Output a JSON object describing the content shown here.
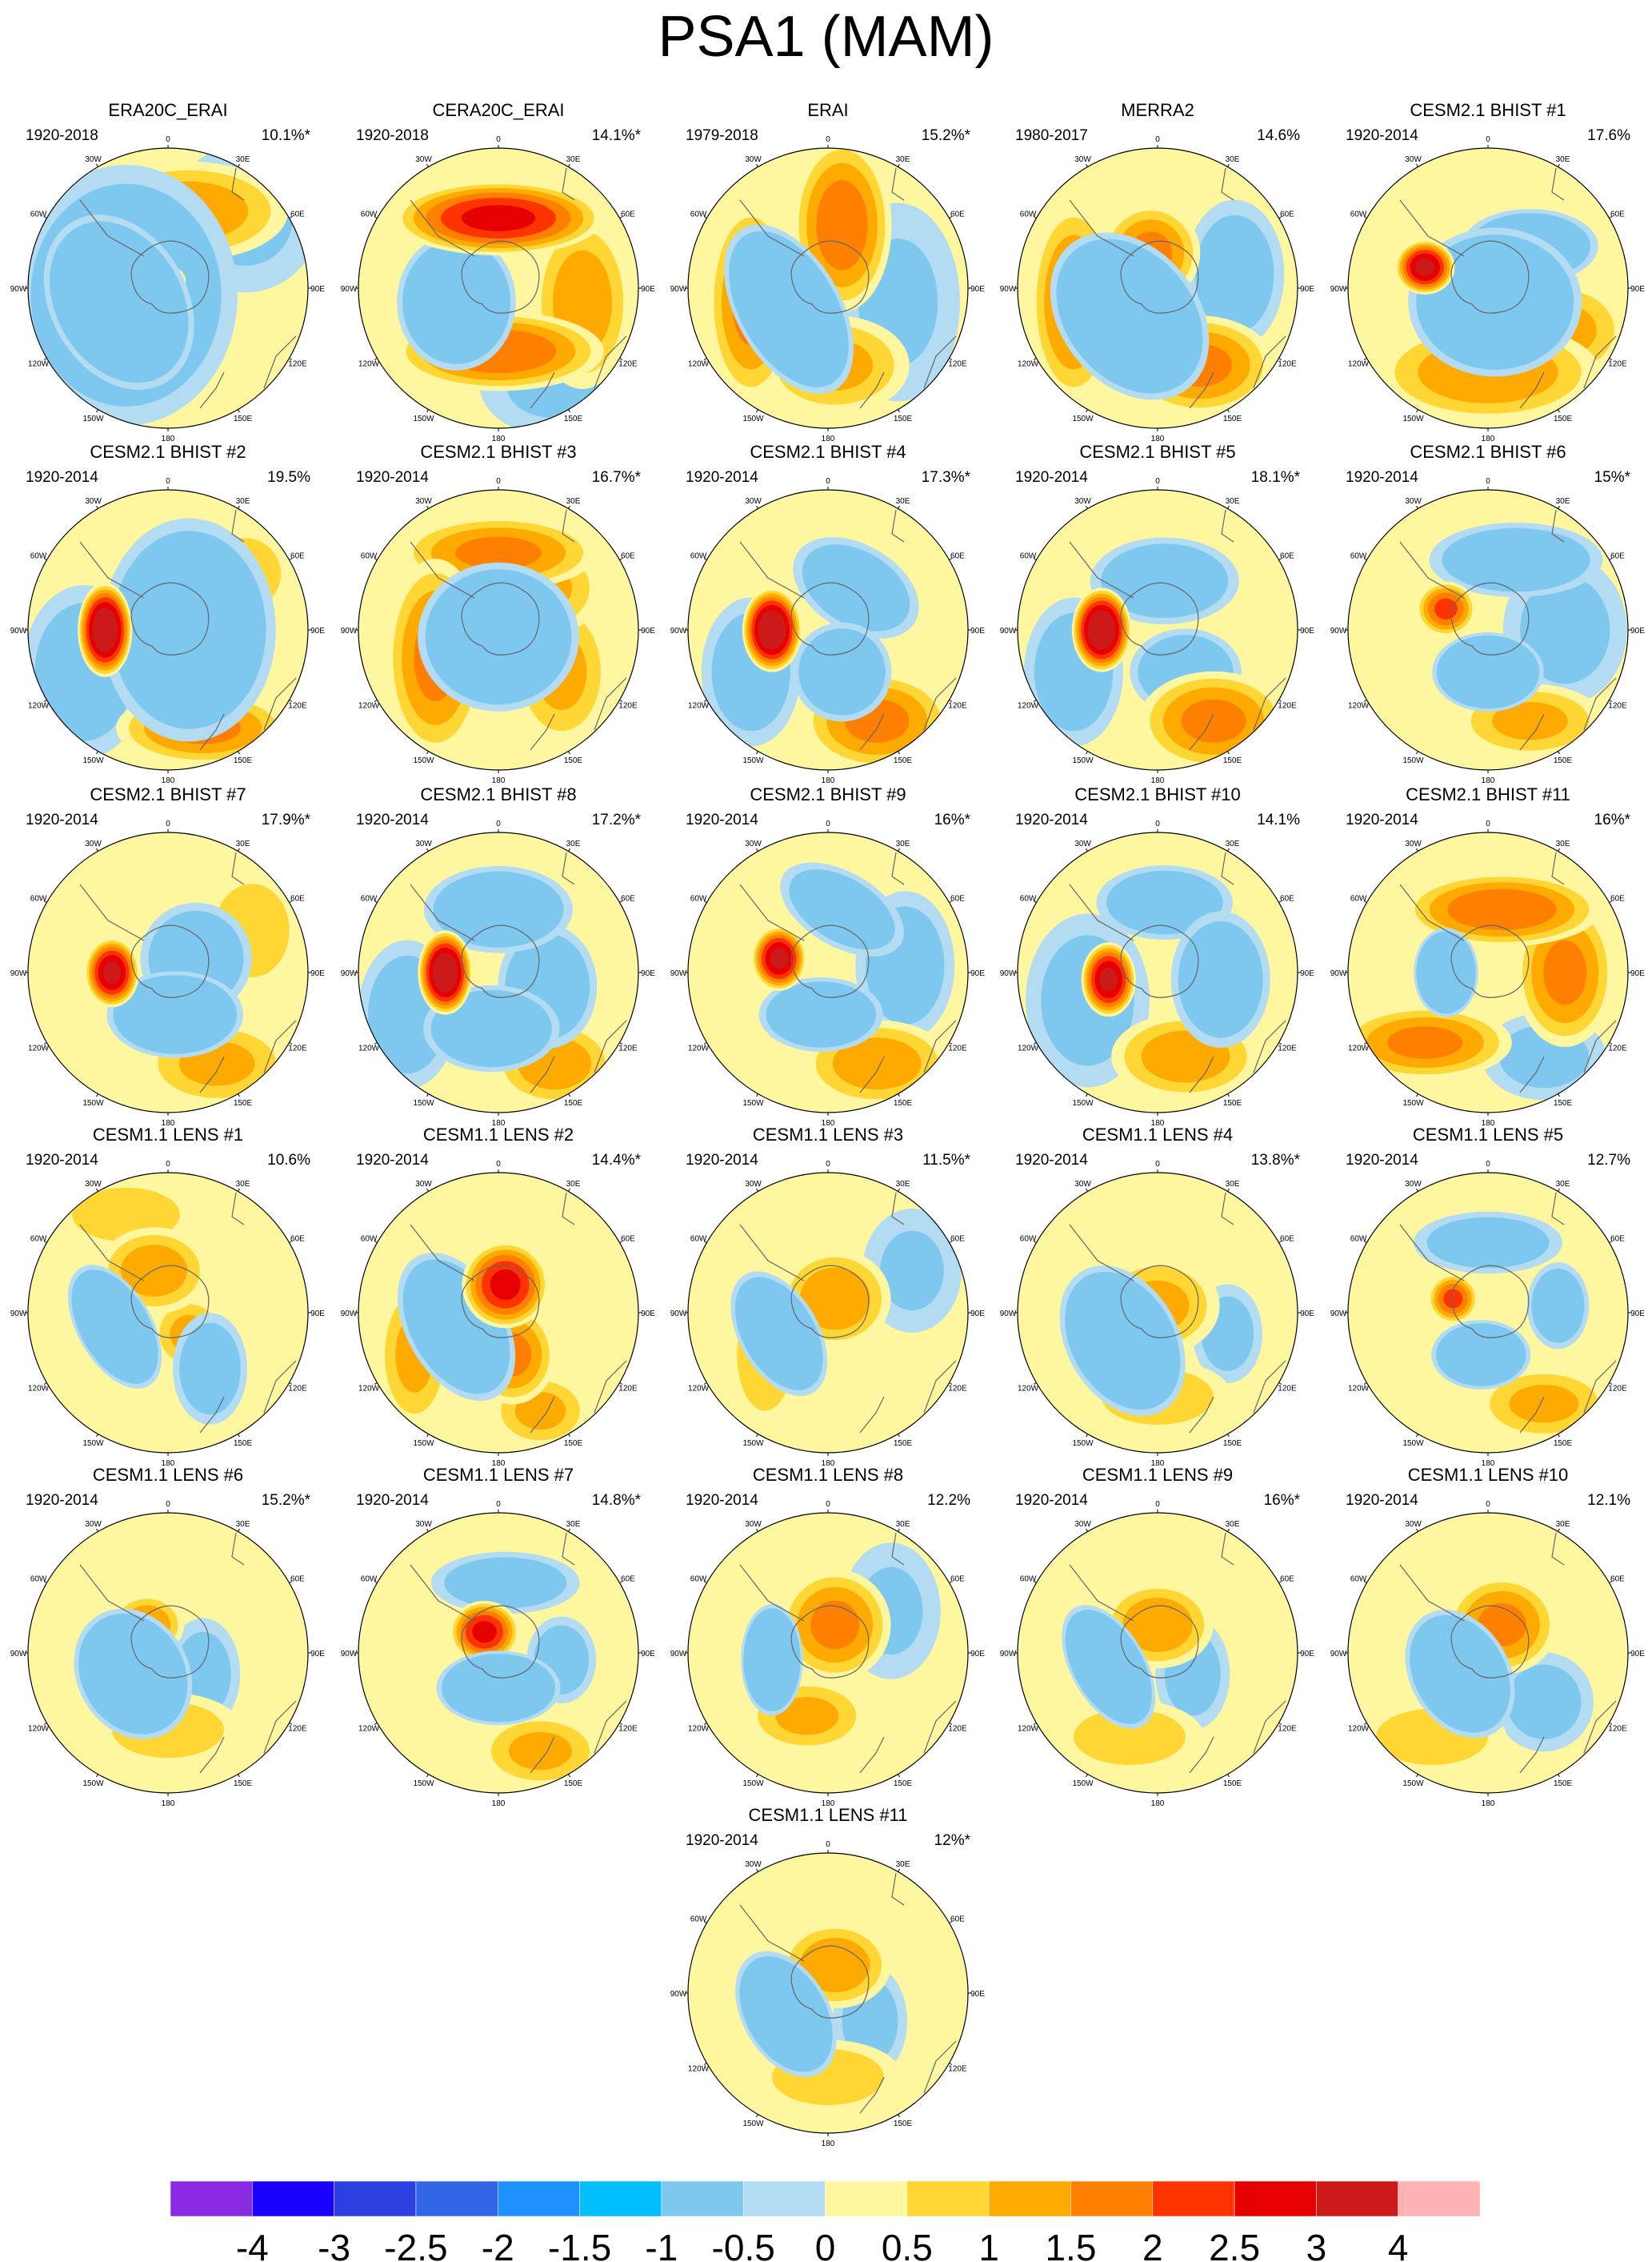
{
  "figure": {
    "title": "PSA1 (MAM)",
    "longitude_labels": [
      "0",
      "30E",
      "60E",
      "90E",
      "120E",
      "150E",
      "180",
      "150W",
      "120W",
      "90W",
      "60W",
      "30W"
    ]
  },
  "panels": [
    {
      "title": "ERA20C_ERAI",
      "period": "1920-2018",
      "pct": "10.1%*",
      "blobs": [
        [
          -0.35,
          0.1,
          55,
          75,
          -30,
          -3
        ],
        [
          -0.3,
          0.05,
          90,
          105,
          0,
          -1.5
        ],
        [
          -0.05,
          -0.05,
          20,
          14,
          0,
          2
        ],
        [
          -0.55,
          -0.1,
          40,
          55,
          20,
          1
        ],
        [
          0.15,
          -0.55,
          80,
          40,
          0,
          1.2
        ],
        [
          0.55,
          -0.5,
          60,
          60,
          0,
          -0.5
        ]
      ]
    },
    {
      "title": "CERA20C_ERAI",
      "period": "1920-2018",
      "pct": "14.1%*",
      "blobs": [
        [
          -0.3,
          0.1,
          48,
          55,
          0,
          -2.5
        ],
        [
          0.0,
          -0.5,
          85,
          30,
          0,
          2.5
        ],
        [
          0.0,
          0.45,
          85,
          32,
          0,
          1.8
        ],
        [
          0.6,
          0.1,
          40,
          70,
          0,
          1.2
        ],
        [
          0.4,
          0.7,
          60,
          40,
          0,
          -0.5
        ]
      ]
    },
    {
      "title": "ERAI",
      "period": "1979-2018",
      "pct": "15.2%*",
      "blobs": [
        [
          -0.28,
          0.15,
          42,
          75,
          -30,
          -3
        ],
        [
          0.1,
          -0.45,
          40,
          70,
          0,
          1.7
        ],
        [
          -0.55,
          0.1,
          35,
          80,
          0,
          1.5
        ],
        [
          0.05,
          0.55,
          60,
          40,
          0,
          1
        ],
        [
          0.5,
          0.1,
          50,
          80,
          0,
          -0.5
        ]
      ]
    },
    {
      "title": "MERRA2",
      "period": "1980-2017",
      "pct": "14.6%",
      "blobs": [
        [
          -0.2,
          0.2,
          55,
          75,
          -40,
          -3
        ],
        [
          -0.05,
          -0.25,
          40,
          40,
          0,
          1.5
        ],
        [
          -0.6,
          0.1,
          35,
          80,
          0,
          1.5
        ],
        [
          0.3,
          0.55,
          60,
          40,
          0,
          1.5
        ],
        [
          0.55,
          -0.1,
          40,
          60,
          0,
          -1
        ]
      ]
    },
    {
      "title": "CESM2.1 BHIST #1",
      "period": "1920-2014",
      "pct": "17.6%",
      "blobs": [
        [
          -0.45,
          -0.15,
          24,
          22,
          0,
          3
        ],
        [
          0.05,
          0.1,
          70,
          60,
          0,
          -2.5
        ],
        [
          0.3,
          -0.3,
          55,
          30,
          0,
          -2
        ],
        [
          0.0,
          0.6,
          90,
          40,
          0,
          1.3
        ],
        [
          0.55,
          0.3,
          50,
          40,
          0,
          1
        ]
      ]
    },
    {
      "title": "CESM2.1 BHIST #2",
      "period": "1920-2014",
      "pct": "19.5%",
      "blobs": [
        [
          -0.45,
          0.0,
          22,
          38,
          0,
          3.5
        ],
        [
          0.15,
          0.0,
          70,
          90,
          0,
          -2
        ],
        [
          -0.6,
          0.3,
          50,
          70,
          0,
          -1
        ],
        [
          0.25,
          0.7,
          70,
          30,
          0,
          1.5
        ],
        [
          0.55,
          -0.4,
          40,
          40,
          0,
          0.7
        ]
      ]
    },
    {
      "title": "CESM2.1 BHIST #3",
      "period": "1920-2014",
      "pct": "16.7%*",
      "blobs": [
        [
          0.0,
          0.05,
          65,
          60,
          0,
          -2.5
        ],
        [
          0.0,
          -0.55,
          80,
          30,
          0,
          1.5
        ],
        [
          -0.45,
          0.2,
          40,
          80,
          0,
          1.5
        ],
        [
          0.45,
          0.3,
          40,
          60,
          0,
          1
        ],
        [
          0.3,
          -0.3,
          50,
          40,
          0,
          1
        ]
      ]
    },
    {
      "title": "CESM2.1 BHIST #4",
      "period": "1920-2014",
      "pct": "17.3%*",
      "blobs": [
        [
          -0.4,
          0.0,
          24,
          34,
          0,
          3.5
        ],
        [
          0.2,
          -0.3,
          55,
          35,
          30,
          -1.5
        ],
        [
          0.1,
          0.3,
          40,
          40,
          0,
          -1.8
        ],
        [
          0.35,
          0.65,
          60,
          40,
          0,
          1.5
        ],
        [
          -0.55,
          0.3,
          40,
          60,
          0,
          -1
        ]
      ]
    },
    {
      "title": "CESM2.1 BHIST #5",
      "period": "1920-2014",
      "pct": "18.1%*",
      "blobs": [
        [
          -0.4,
          0.0,
          24,
          34,
          0,
          3.5
        ],
        [
          0.05,
          -0.35,
          60,
          35,
          0,
          -1.5
        ],
        [
          0.2,
          0.3,
          45,
          35,
          0,
          -1.5
        ],
        [
          0.4,
          0.65,
          60,
          40,
          0,
          1.5
        ],
        [
          -0.6,
          0.3,
          40,
          60,
          0,
          -1
        ]
      ]
    },
    {
      "title": "CESM2.1 BHIST #6",
      "period": "1920-2014",
      "pct": "15%*",
      "blobs": [
        [
          0.0,
          0.3,
          45,
          32,
          0,
          -3
        ],
        [
          -0.3,
          -0.15,
          24,
          22,
          0,
          2
        ],
        [
          0.2,
          -0.5,
          70,
          30,
          0,
          -1.5
        ],
        [
          0.3,
          0.65,
          60,
          30,
          0,
          1
        ],
        [
          0.55,
          0.0,
          50,
          60,
          0,
          -0.7
        ]
      ]
    },
    {
      "title": "CESM2.1 BHIST #7",
      "period": "1920-2014",
      "pct": "17.9%*",
      "blobs": [
        [
          -0.4,
          0.0,
          22,
          28,
          0,
          3
        ],
        [
          0.05,
          0.3,
          55,
          35,
          0,
          -2.5
        ],
        [
          0.2,
          -0.1,
          45,
          45,
          0,
          -1.5
        ],
        [
          0.35,
          0.65,
          60,
          35,
          0,
          1
        ],
        [
          0.6,
          -0.3,
          40,
          50,
          0,
          0.8
        ]
      ]
    },
    {
      "title": "CESM2.1 BHIST #8",
      "period": "1920-2014",
      "pct": "17.2%*",
      "blobs": [
        [
          -0.38,
          0.0,
          22,
          34,
          0,
          3.5
        ],
        [
          0.0,
          -0.45,
          60,
          35,
          0,
          -1.8
        ],
        [
          -0.05,
          0.4,
          55,
          35,
          0,
          -2
        ],
        [
          0.35,
          0.1,
          40,
          50,
          0,
          -1.5
        ],
        [
          0.4,
          0.65,
          50,
          35,
          0,
          1.2
        ],
        [
          -0.65,
          0.3,
          40,
          60,
          0,
          -1
        ]
      ]
    },
    {
      "title": "CESM2.1 BHIST #9",
      "period": "1920-2014",
      "pct": "16%*",
      "blobs": [
        [
          -0.35,
          -0.1,
          22,
          26,
          0,
          3
        ],
        [
          0.1,
          -0.45,
          55,
          30,
          30,
          -1.5
        ],
        [
          -0.05,
          0.3,
          50,
          30,
          0,
          -2
        ],
        [
          0.35,
          0.65,
          60,
          35,
          0,
          1.2
        ],
        [
          0.55,
          -0.05,
          40,
          60,
          0,
          -1
        ]
      ]
    },
    {
      "title": "CESM2.1 BHIST #10",
      "period": "1920-2014",
      "pct": "14.1%",
      "blobs": [
        [
          -0.35,
          0.05,
          22,
          30,
          0,
          3
        ],
        [
          0.05,
          -0.5,
          55,
          30,
          0,
          -1.5
        ],
        [
          0.45,
          0.05,
          40,
          55,
          0,
          -1.5
        ],
        [
          0.2,
          0.6,
          60,
          35,
          0,
          1.2
        ],
        [
          -0.5,
          0.2,
          50,
          70,
          0,
          -0.8
        ]
      ]
    },
    {
      "title": "CESM2.1 BHIST #11",
      "period": "1920-2014",
      "pct": "16%*",
      "blobs": [
        [
          -0.3,
          0.0,
          26,
          36,
          0,
          -3
        ],
        [
          0.1,
          -0.45,
          80,
          30,
          0,
          1.8
        ],
        [
          0.55,
          0.0,
          40,
          60,
          0,
          1.5
        ],
        [
          -0.45,
          0.5,
          70,
          30,
          0,
          1.5
        ],
        [
          0.4,
          0.6,
          50,
          35,
          0,
          -0.7
        ]
      ]
    },
    {
      "title": "CESM1.1 LENS #1",
      "period": "1920-2014",
      "pct": "10.6%",
      "blobs": [
        [
          -0.38,
          0.1,
          30,
          55,
          -30,
          -3
        ],
        [
          -0.1,
          -0.3,
          45,
          35,
          0,
          1.2
        ],
        [
          0.15,
          0.15,
          30,
          30,
          0,
          1
        ],
        [
          0.3,
          0.4,
          30,
          45,
          0,
          -1.2
        ],
        [
          -0.3,
          -0.7,
          60,
          30,
          0,
          0.7
        ]
      ]
    },
    {
      "title": "CESM1.1 LENS #2",
      "period": "1920-2014",
      "pct": "14.4%*",
      "blobs": [
        [
          -0.3,
          0.1,
          40,
          65,
          -30,
          -2.5
        ],
        [
          0.05,
          -0.2,
          35,
          35,
          0,
          2.5
        ],
        [
          0.1,
          0.3,
          35,
          40,
          0,
          1.5
        ],
        [
          -0.6,
          0.3,
          30,
          60,
          0,
          1
        ],
        [
          0.3,
          0.7,
          40,
          30,
          0,
          1
        ]
      ]
    },
    {
      "title": "CESM1.1 LENS #3",
      "period": "1920-2014",
      "pct": "11.5%*",
      "blobs": [
        [
          -0.35,
          0.15,
          32,
          55,
          -30,
          -2.5
        ],
        [
          0.05,
          -0.1,
          45,
          40,
          0,
          1.3
        ],
        [
          -0.45,
          0.3,
          30,
          60,
          0,
          0.8
        ],
        [
          0.6,
          -0.3,
          40,
          50,
          0,
          -0.5
        ]
      ]
    },
    {
      "title": "CESM1.1 LENS #4",
      "period": "1920-2014",
      "pct": "13.8%*",
      "blobs": [
        [
          -0.25,
          0.2,
          45,
          65,
          -30,
          -2.8
        ],
        [
          0.0,
          -0.05,
          50,
          40,
          0,
          1
        ],
        [
          0.5,
          0.15,
          28,
          40,
          0,
          -0.8
        ],
        [
          0.0,
          0.6,
          60,
          30,
          0,
          0.8
        ]
      ]
    },
    {
      "title": "CESM1.1 LENS #5",
      "period": "1920-2014",
      "pct": "12.7%",
      "blobs": [
        [
          -0.05,
          0.3,
          40,
          28,
          0,
          -2.5
        ],
        [
          -0.25,
          -0.1,
          20,
          20,
          0,
          2
        ],
        [
          0.0,
          -0.5,
          60,
          25,
          0,
          -1.2
        ],
        [
          0.5,
          -0.05,
          25,
          35,
          0,
          -1.5
        ],
        [
          0.4,
          0.65,
          55,
          30,
          0,
          1
        ]
      ]
    },
    {
      "title": "CESM1.1 LENS #6",
      "period": "1920-2014",
      "pct": "15.2%*",
      "blobs": [
        [
          -0.25,
          0.15,
          45,
          55,
          -30,
          -3
        ],
        [
          -0.15,
          -0.2,
          30,
          25,
          0,
          1.3
        ],
        [
          0.25,
          0.15,
          30,
          45,
          0,
          -0.8
        ],
        [
          0.0,
          0.55,
          60,
          30,
          0,
          0.8
        ]
      ]
    },
    {
      "title": "CESM1.1 LENS #7",
      "period": "1920-2014",
      "pct": "14.8%*",
      "blobs": [
        [
          0.0,
          0.25,
          50,
          30,
          0,
          -2.8
        ],
        [
          -0.1,
          -0.15,
          28,
          25,
          0,
          2.5
        ],
        [
          0.05,
          -0.5,
          60,
          25,
          0,
          -1.2
        ],
        [
          0.45,
          0.05,
          28,
          35,
          0,
          -1
        ],
        [
          0.3,
          0.7,
          50,
          30,
          0,
          1
        ]
      ]
    },
    {
      "title": "CESM1.1 LENS #8",
      "period": "1920-2014",
      "pct": "12.2%",
      "blobs": [
        [
          -0.4,
          0.05,
          25,
          45,
          0,
          -3
        ],
        [
          0.05,
          -0.2,
          45,
          45,
          0,
          1.5
        ],
        [
          -0.15,
          0.45,
          50,
          30,
          0,
          1
        ],
        [
          0.45,
          -0.3,
          40,
          55,
          0,
          -0.5
        ]
      ]
    },
    {
      "title": "CESM1.1 LENS #9",
      "period": "1920-2014",
      "pct": "16%*",
      "blobs": [
        [
          -0.35,
          0.1,
          30,
          55,
          -30,
          -3
        ],
        [
          0.0,
          -0.2,
          45,
          35,
          0,
          1.3
        ],
        [
          0.25,
          0.15,
          30,
          45,
          0,
          -0.8
        ],
        [
          -0.2,
          0.6,
          60,
          30,
          0,
          0.8
        ]
      ]
    },
    {
      "title": "CESM1.1 LENS #10",
      "period": "1920-2014",
      "pct": "12.1%",
      "blobs": [
        [
          -0.2,
          0.15,
          40,
          55,
          -30,
          -2.8
        ],
        [
          0.1,
          -0.2,
          45,
          40,
          0,
          1.5
        ],
        [
          0.4,
          0.35,
          40,
          40,
          0,
          -0.8
        ],
        [
          -0.4,
          0.6,
          60,
          30,
          0,
          0.8
        ]
      ]
    },
    {
      "title": "CESM1.1 LENS #11",
      "period": "1920-2014",
      "pct": "12%*",
      "blobs": [
        [
          -0.3,
          0.15,
          35,
          55,
          -30,
          -2.8
        ],
        [
          0.05,
          -0.2,
          45,
          35,
          0,
          1.3
        ],
        [
          0.3,
          0.2,
          30,
          45,
          0,
          -0.8
        ],
        [
          0.0,
          0.6,
          60,
          30,
          0,
          0.8
        ]
      ]
    }
  ],
  "colorbar": {
    "labels": [
      "-4",
      "-3",
      "-2.5",
      "-2",
      "-1.5",
      "-1",
      "-0.5",
      "0",
      "0.5",
      "1",
      "1.5",
      "2",
      "2.5",
      "3",
      "4"
    ],
    "colors": [
      "#8A2BE2",
      "#1A00FF",
      "#2D3FE0",
      "#3366E6",
      "#1E90FF",
      "#00BFFF",
      "#7EC8F0",
      "#B3DCF2",
      "#FFF7A0",
      "#FFD633",
      "#FFAA00",
      "#FF8000",
      "#FF3300",
      "#E60000",
      "#CC1A1A",
      "#FFB3B3"
    ],
    "bounds": [
      -4,
      -3,
      -2.5,
      -2,
      -1.5,
      -1,
      -0.5,
      0,
      0.5,
      1,
      1.5,
      2,
      2.5,
      3,
      4
    ]
  }
}
